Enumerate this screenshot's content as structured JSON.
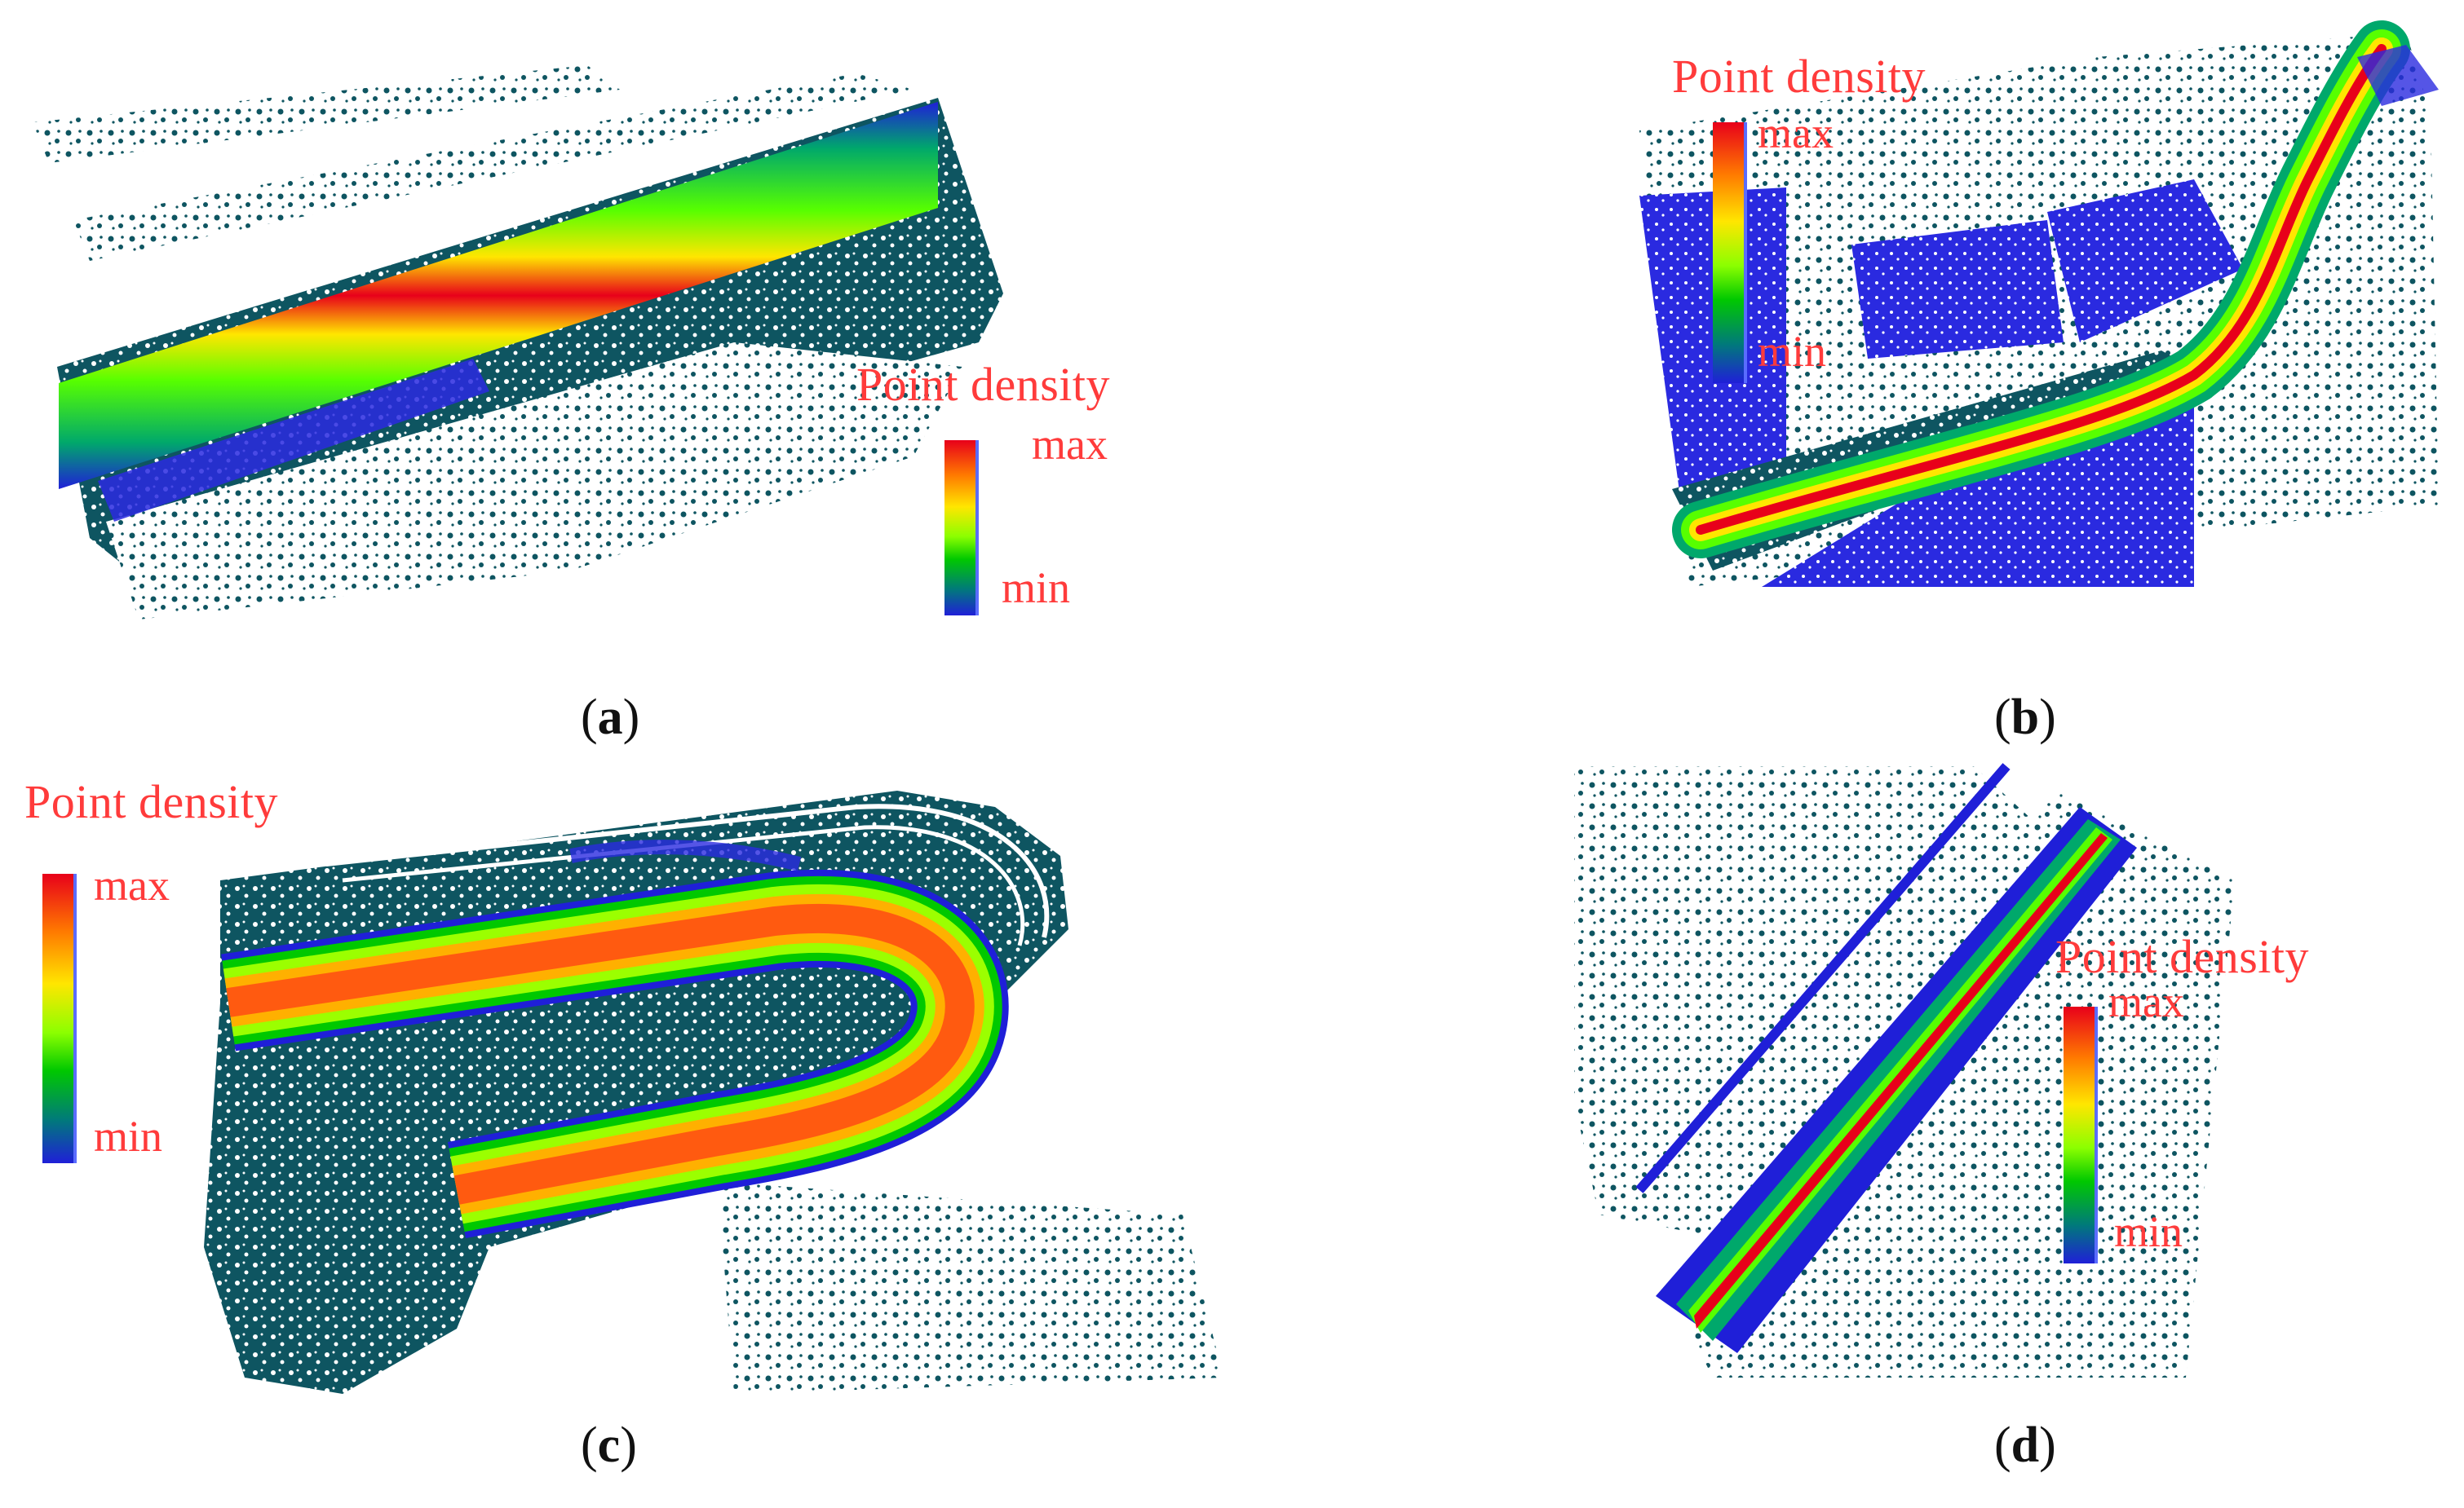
{
  "figure": {
    "colors": {
      "vegetation_points": "#0e5561",
      "low_density_points": "#1f1fd8",
      "label_red": "#ff3b3b",
      "ramp": [
        "#1f1fd8",
        "#007a7a",
        "#00c800",
        "#8bff00",
        "#ffe600",
        "#ff7a00",
        "#e8001a"
      ]
    },
    "panels": [
      {
        "id": "a",
        "caption_letter": "a",
        "legend_title": "Point density",
        "legend_max": "max",
        "legend_min": "min"
      },
      {
        "id": "b",
        "caption_letter": "b",
        "legend_title": "Point density",
        "legend_max": "max",
        "legend_min": "min"
      },
      {
        "id": "c",
        "caption_letter": "c",
        "legend_title": "Point density",
        "legend_max": "max",
        "legend_min": "min"
      },
      {
        "id": "d",
        "caption_letter": "d",
        "legend_title": "Point density",
        "legend_max": "max",
        "legend_min": "min"
      }
    ],
    "caption_open": "(",
    "caption_close": ")"
  }
}
